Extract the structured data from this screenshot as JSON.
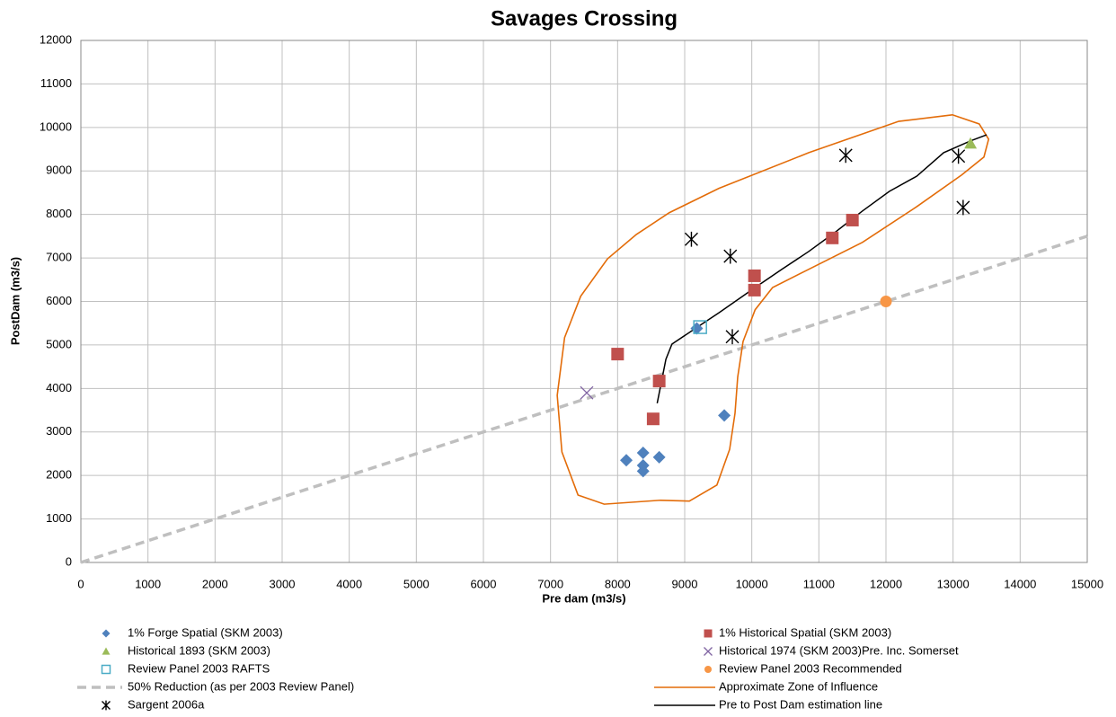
{
  "chart_data": {
    "type": "scatter",
    "title": "Savages Crossing",
    "x_label": "Pre dam (m3/s)",
    "y_label": "PostDam (m3/s)",
    "xlim": [
      0,
      15000
    ],
    "ylim": [
      0,
      12000
    ],
    "xticks": [
      0,
      1000,
      2000,
      3000,
      4000,
      5000,
      6000,
      7000,
      8000,
      9000,
      10000,
      11000,
      12000,
      13000,
      14000,
      15000
    ],
    "yticks": [
      0,
      1000,
      2000,
      3000,
      4000,
      5000,
      6000,
      7000,
      8000,
      9000,
      10000,
      11000,
      12000
    ],
    "grid": true,
    "series": [
      {
        "name": "1% Forge Spatial (SKM 2003)",
        "color": "#4f81bd",
        "marker": "diamond",
        "x": [
          9180,
          9590,
          8130,
          8380,
          8380,
          8380,
          8620
        ],
        "values": [
          5380,
          3380,
          2350,
          2520,
          2230,
          2100,
          2420
        ]
      },
      {
        "name": "1% Historical Spatial (SKM 2003)",
        "color": "#c0504d",
        "marker": "square",
        "x": [
          8000,
          8620,
          8530,
          10040,
          10040,
          11200,
          11500
        ],
        "values": [
          4790,
          4170,
          3300,
          6590,
          6260,
          7460,
          7870
        ]
      },
      {
        "name": "Historical 1893 (SKM 2003)",
        "color": "#9bbb59",
        "marker": "triangle",
        "x": [
          13260
        ],
        "values": [
          9630
        ]
      },
      {
        "name": "Historical 1974 (SKM 2003)Pre. Inc. Somerset",
        "color": "#8064a2",
        "marker": "x",
        "x": [
          7540
        ],
        "values": [
          3900
        ]
      },
      {
        "name": "Review Panel 2003 RAFTS",
        "color": "#4bacc6",
        "marker": "square-open",
        "x": [
          9230
        ],
        "values": [
          5410
        ]
      },
      {
        "name": "Review Panel 2003 Recommended",
        "color": "#f79646",
        "marker": "circle",
        "x": [
          12000
        ],
        "values": [
          6000
        ]
      },
      {
        "name": "50% Reduction (as per 2003 Review Panel)",
        "color": "#bfbfbf",
        "line": "dash",
        "x": [
          0,
          15000
        ],
        "values": [
          0,
          7500
        ]
      },
      {
        "name": "Approximate Zone of Influence",
        "color": "#e36c09",
        "line": "solid",
        "closed": true,
        "x": [
          7410,
          7170,
          7100,
          7210,
          7450,
          7850,
          8280,
          8770,
          9510,
          10850,
          12190,
          12990,
          13390,
          13530,
          13460,
          13130,
          12460,
          11650,
          10850,
          10310,
          10050,
          9870,
          9790,
          9750,
          9670,
          9480,
          9070,
          8640,
          7800
        ],
        "values": [
          1550,
          2540,
          3840,
          5170,
          6120,
          6980,
          7540,
          8040,
          8600,
          9420,
          10140,
          10290,
          10080,
          9730,
          9320,
          8910,
          8180,
          7360,
          6740,
          6320,
          5810,
          5080,
          4260,
          3430,
          2600,
          1780,
          1410,
          1430,
          1340
        ]
      },
      {
        "name": "Sargent 2006a",
        "color": "#000000",
        "marker": "asterisk",
        "x": [
          9100,
          9680,
          11400,
          13080,
          13150,
          9710
        ],
        "values": [
          7430,
          7040,
          9360,
          9340,
          8160,
          5190
        ]
      },
      {
        "name": "Pre to Post Dam estimation line",
        "color": "#000000",
        "line": "thin",
        "x": [
          8590,
          8720,
          8810,
          9170,
          9510,
          10050,
          10450,
          10850,
          11250,
          11650,
          12050,
          12460,
          12860,
          13260,
          13500
        ],
        "values": [
          3660,
          4670,
          5020,
          5390,
          5740,
          6320,
          6740,
          7150,
          7600,
          8080,
          8530,
          8880,
          9420,
          9690,
          9830
        ]
      }
    ]
  }
}
